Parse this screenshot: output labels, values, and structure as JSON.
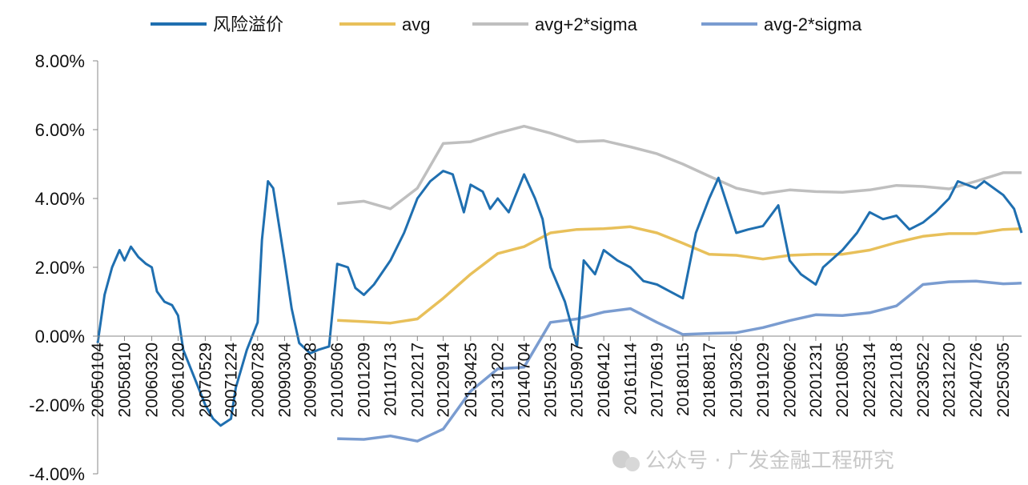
{
  "chart_data": {
    "type": "line",
    "title": "",
    "xlabel": "",
    "ylabel": "",
    "ylim": [
      -0.04,
      0.08
    ],
    "yticks": [
      "8.00%",
      "6.00%",
      "4.00%",
      "2.00%",
      "0.00%",
      "-2.00%",
      "-4.00%"
    ],
    "ytick_values": [
      0.08,
      0.06,
      0.04,
      0.02,
      0.0,
      -0.02,
      -0.04
    ],
    "x_categories": [
      "20050104",
      "20050810",
      "20060320",
      "20061020",
      "20070529",
      "20071224",
      "20080728",
      "20090304",
      "20090928",
      "20100506",
      "20101209",
      "20110713",
      "20120217",
      "20120914",
      "20130425",
      "20131202",
      "20140704",
      "20150203",
      "20150907",
      "20160412",
      "20161114",
      "20170619",
      "20180115",
      "20180817",
      "20190326",
      "20191029",
      "20200602",
      "20201231",
      "20210805",
      "20220314",
      "20221018",
      "20230522",
      "20231220",
      "20240726",
      "20250305"
    ],
    "grid": false,
    "legend_position": "top",
    "series": [
      {
        "name": "风险溢价",
        "color": "#1f6fb0",
        "values": [
          [
            "20050104",
            -0.002
          ],
          [
            "20050301",
            0.012
          ],
          [
            "20050501",
            0.02
          ],
          [
            "20050701",
            0.025
          ],
          [
            "20050810",
            0.022
          ],
          [
            "20051001",
            0.026
          ],
          [
            "20051201",
            0.023
          ],
          [
            "20060201",
            0.021
          ],
          [
            "20060320",
            0.02
          ],
          [
            "20060501",
            0.013
          ],
          [
            "20060701",
            0.01
          ],
          [
            "20060901",
            0.009
          ],
          [
            "20061020",
            0.006
          ],
          [
            "20061201",
            -0.004
          ],
          [
            "20070301",
            -0.012
          ],
          [
            "20070529",
            -0.02
          ],
          [
            "20070801",
            -0.024
          ],
          [
            "20071001",
            -0.026
          ],
          [
            "20071224",
            -0.024
          ],
          [
            "20080201",
            -0.015
          ],
          [
            "20080501",
            -0.004
          ],
          [
            "20080728",
            0.004
          ],
          [
            "20080901",
            0.028
          ],
          [
            "20081020",
            0.045
          ],
          [
            "20081201",
            0.043
          ],
          [
            "20090304",
            0.022
          ],
          [
            "20090501",
            0.008
          ],
          [
            "20090701",
            -0.002
          ],
          [
            "20090928",
            -0.005
          ],
          [
            "20091201",
            -0.004
          ],
          [
            "20100301",
            -0.003
          ],
          [
            "20100506",
            0.021
          ],
          [
            "20100801",
            0.02
          ],
          [
            "20101001",
            0.014
          ],
          [
            "20101209",
            0.012
          ],
          [
            "20110301",
            0.015
          ],
          [
            "20110713",
            0.022
          ],
          [
            "20111101",
            0.03
          ],
          [
            "20120217",
            0.04
          ],
          [
            "20120601",
            0.045
          ],
          [
            "20120914",
            0.048
          ],
          [
            "20121201",
            0.047
          ],
          [
            "20130301",
            0.036
          ],
          [
            "20130425",
            0.044
          ],
          [
            "20130801",
            0.042
          ],
          [
            "20131001",
            0.037
          ],
          [
            "20131202",
            0.04
          ],
          [
            "20140301",
            0.036
          ],
          [
            "20140704",
            0.047
          ],
          [
            "20141001",
            0.04
          ],
          [
            "20141201",
            0.034
          ],
          [
            "20150203",
            0.02
          ],
          [
            "20150601",
            0.01
          ],
          [
            "20150907",
            -0.003
          ],
          [
            "20151101",
            0.022
          ],
          [
            "20160201",
            0.018
          ],
          [
            "20160412",
            0.025
          ],
          [
            "20160801",
            0.022
          ],
          [
            "20161114",
            0.02
          ],
          [
            "20170301",
            0.016
          ],
          [
            "20170619",
            0.015
          ],
          [
            "20171001",
            0.013
          ],
          [
            "20180115",
            0.011
          ],
          [
            "20180501",
            0.03
          ],
          [
            "20180817",
            0.04
          ],
          [
            "20181101",
            0.046
          ],
          [
            "20190326",
            0.03
          ],
          [
            "20190701",
            0.031
          ],
          [
            "20191029",
            0.032
          ],
          [
            "20200301",
            0.038
          ],
          [
            "20200602",
            0.022
          ],
          [
            "20200901",
            0.018
          ],
          [
            "20201231",
            0.015
          ],
          [
            "20210301",
            0.02
          ],
          [
            "20210805",
            0.025
          ],
          [
            "20211201",
            0.03
          ],
          [
            "20220314",
            0.036
          ],
          [
            "20220701",
            0.034
          ],
          [
            "20221018",
            0.035
          ],
          [
            "20230201",
            0.031
          ],
          [
            "20230522",
            0.033
          ],
          [
            "20230901",
            0.036
          ],
          [
            "20231220",
            0.04
          ],
          [
            "20240301",
            0.045
          ],
          [
            "20240726",
            0.043
          ],
          [
            "20241001",
            0.045
          ],
          [
            "20250305",
            0.041
          ],
          [
            "20250601",
            0.037
          ],
          [
            "20250801",
            0.03
          ]
        ]
      },
      {
        "name": "avg",
        "color": "#e8c05a",
        "values": [
          [
            "20100506",
            0.0046
          ],
          [
            "20101209",
            0.0042
          ],
          [
            "20110713",
            0.0038
          ],
          [
            "20120217",
            0.005
          ],
          [
            "20120914",
            0.011
          ],
          [
            "20130425",
            0.018
          ],
          [
            "20131202",
            0.024
          ],
          [
            "20140704",
            0.026
          ],
          [
            "20150203",
            0.03
          ],
          [
            "20150907",
            0.031
          ],
          [
            "20160412",
            0.0312
          ],
          [
            "20161114",
            0.0318
          ],
          [
            "20170619",
            0.03
          ],
          [
            "20180115",
            0.027
          ],
          [
            "20180817",
            0.0238
          ],
          [
            "20190326",
            0.0235
          ],
          [
            "20191029",
            0.0224
          ],
          [
            "20200602",
            0.0235
          ],
          [
            "20201231",
            0.0238
          ],
          [
            "20210805",
            0.0238
          ],
          [
            "20220314",
            0.025
          ],
          [
            "20221018",
            0.0272
          ],
          [
            "20230522",
            0.029
          ],
          [
            "20231220",
            0.0298
          ],
          [
            "20240726",
            0.0298
          ],
          [
            "20250305",
            0.031
          ],
          [
            "20250801",
            0.0312
          ]
        ]
      },
      {
        "name": "avg+2*sigma",
        "color": "#bfbfbf",
        "values": [
          [
            "20100506",
            0.0385
          ],
          [
            "20101209",
            0.0392
          ],
          [
            "20110713",
            0.037
          ],
          [
            "20120217",
            0.043
          ],
          [
            "20120914",
            0.056
          ],
          [
            "20130425",
            0.0565
          ],
          [
            "20131202",
            0.059
          ],
          [
            "20140704",
            0.061
          ],
          [
            "20150203",
            0.059
          ],
          [
            "20150907",
            0.0565
          ],
          [
            "20160412",
            0.0568
          ],
          [
            "20161114",
            0.055
          ],
          [
            "20170619",
            0.053
          ],
          [
            "20180115",
            0.05
          ],
          [
            "20180817",
            0.0465
          ],
          [
            "20190326",
            0.043
          ],
          [
            "20191029",
            0.0414
          ],
          [
            "20200602",
            0.0425
          ],
          [
            "20201231",
            0.042
          ],
          [
            "20210805",
            0.0418
          ],
          [
            "20220314",
            0.0425
          ],
          [
            "20221018",
            0.0438
          ],
          [
            "20230522",
            0.0435
          ],
          [
            "20231220",
            0.0428
          ],
          [
            "20240726",
            0.045
          ],
          [
            "20250305",
            0.0475
          ],
          [
            "20250801",
            0.0475
          ]
        ]
      },
      {
        "name": "avg-2*sigma",
        "color": "#7a9cd0",
        "values": [
          [
            "20100506",
            -0.0298
          ],
          [
            "20101209",
            -0.03
          ],
          [
            "20110713",
            -0.029
          ],
          [
            "20120217",
            -0.0305
          ],
          [
            "20120914",
            -0.027
          ],
          [
            "20130425",
            -0.016
          ],
          [
            "20131202",
            -0.0095
          ],
          [
            "20140704",
            -0.009
          ],
          [
            "20150203",
            0.004
          ],
          [
            "20150907",
            0.005
          ],
          [
            "20160412",
            0.007
          ],
          [
            "20161114",
            0.008
          ],
          [
            "20170619",
            0.004
          ],
          [
            "20180115",
            0.0005
          ],
          [
            "20180817",
            0.0008
          ],
          [
            "20190326",
            0.001
          ],
          [
            "20191029",
            0.0025
          ],
          [
            "20200602",
            0.0045
          ],
          [
            "20201231",
            0.0062
          ],
          [
            "20210805",
            0.006
          ],
          [
            "20220314",
            0.0068
          ],
          [
            "20221018",
            0.0088
          ],
          [
            "20230522",
            0.015
          ],
          [
            "20231220",
            0.0158
          ],
          [
            "20240726",
            0.016
          ],
          [
            "20250305",
            0.0152
          ],
          [
            "20250801",
            0.0154
          ]
        ]
      }
    ]
  },
  "watermark": "公众号 · 广发金融工程研究"
}
